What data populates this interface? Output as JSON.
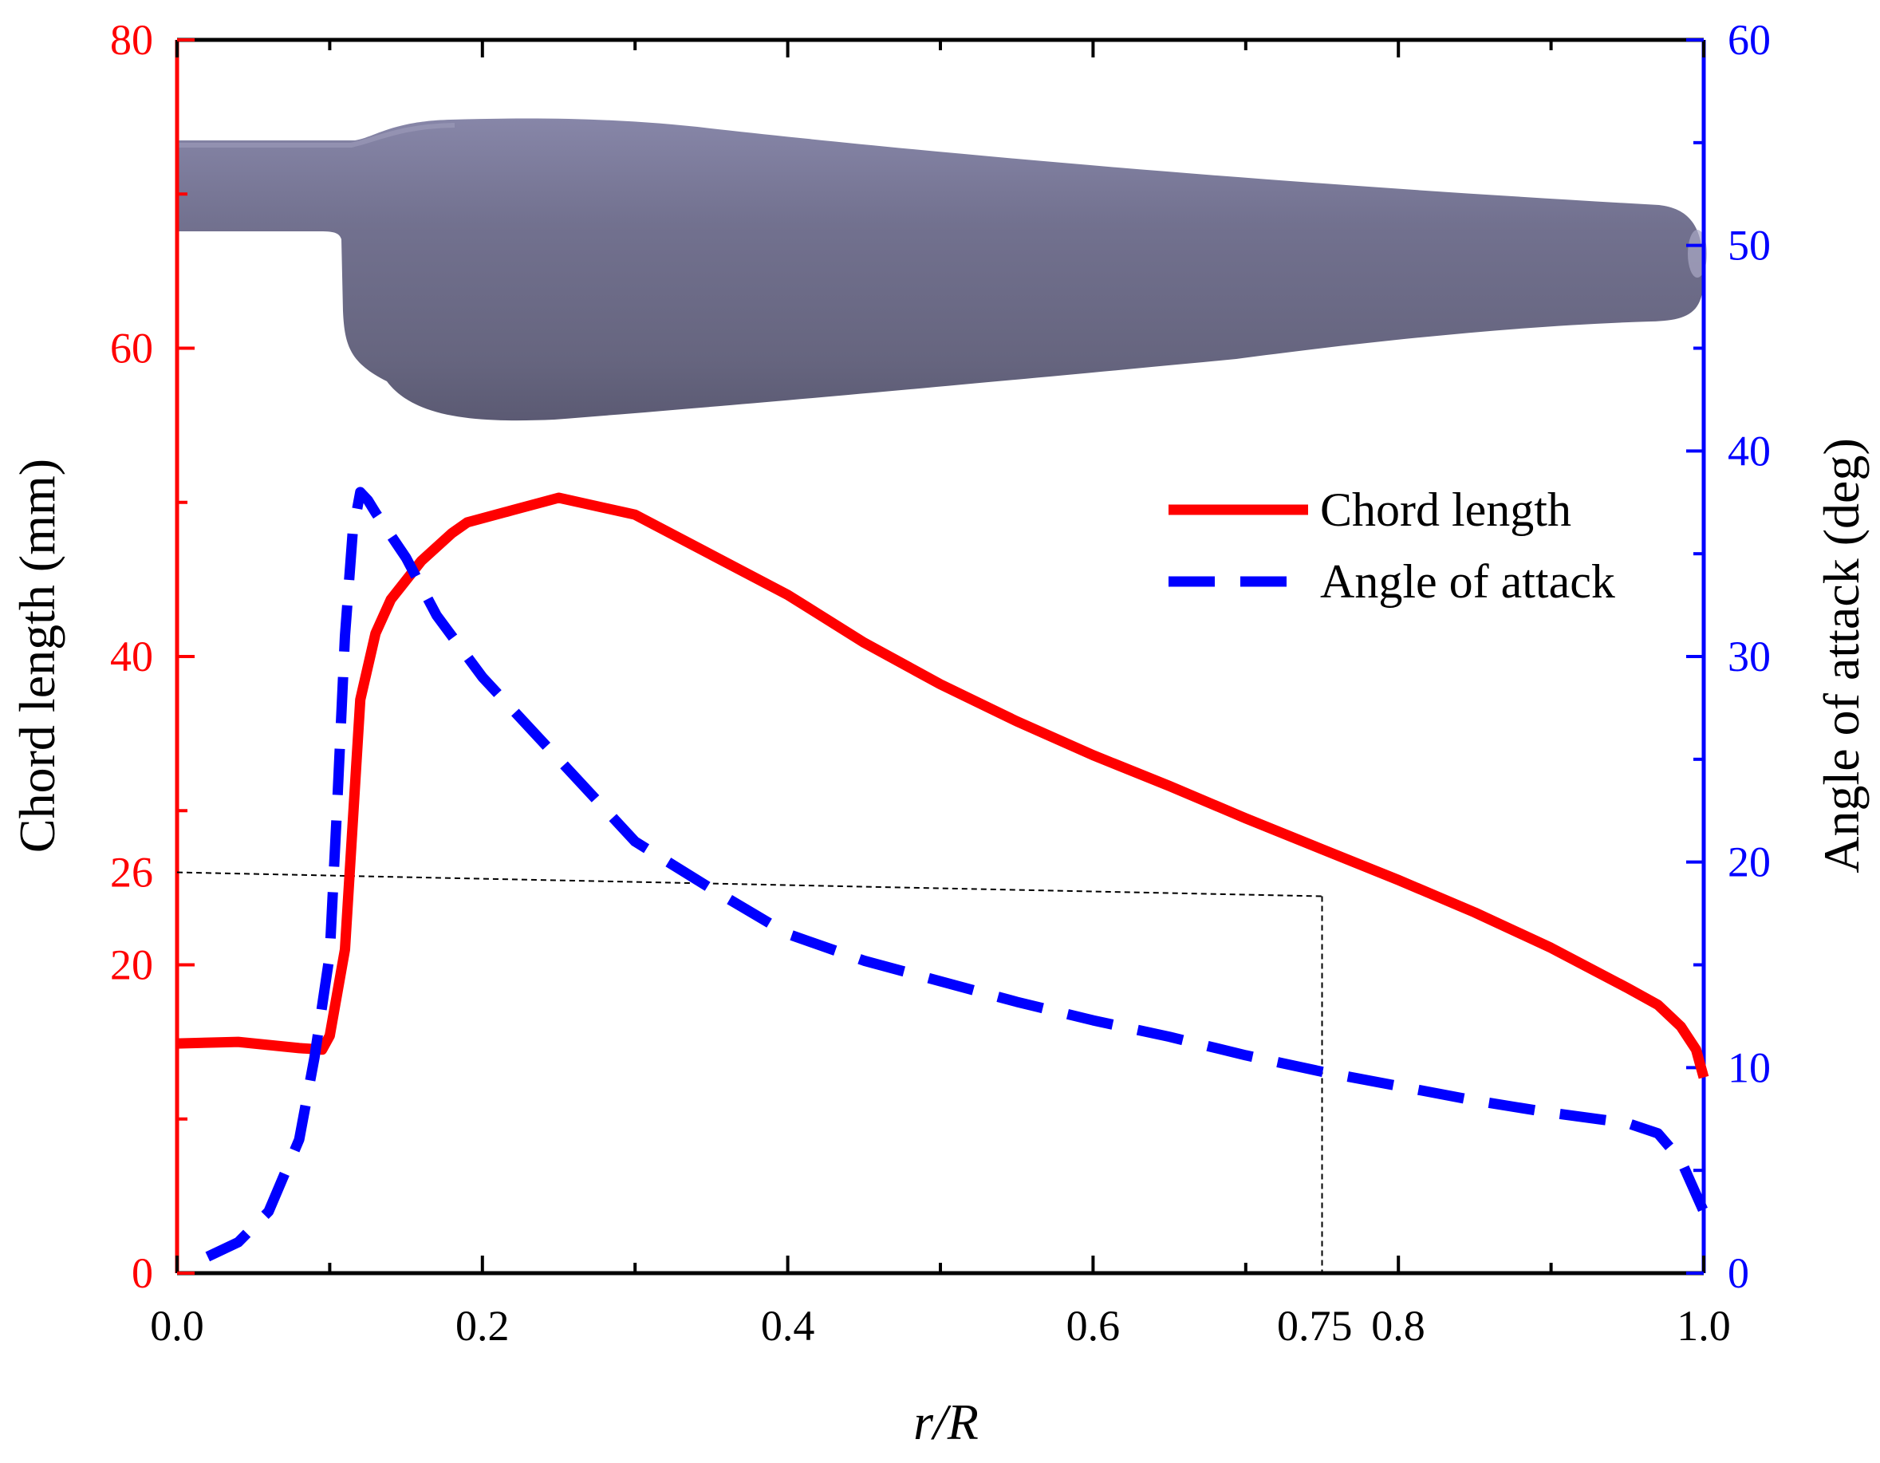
{
  "chart_data": {
    "type": "line",
    "xlabel": "r/R",
    "ylabel_left": "Chord length (mm)",
    "ylabel_right": "Angle of attack (deg)",
    "xlim": [
      0.0,
      1.0
    ],
    "ylim_left": [
      0,
      80
    ],
    "ylim_right": [
      0,
      60
    ],
    "x_ticks": [
      "0.0",
      "0.2",
      "0.4",
      "0.6",
      "0.75",
      "0.8",
      "1.0"
    ],
    "y_left_ticks": [
      "0",
      "20",
      "26",
      "40",
      "60",
      "80"
    ],
    "y_right_ticks": [
      "0",
      "10",
      "20",
      "30",
      "40",
      "50",
      "60"
    ],
    "colors": {
      "chord": "#ff0000",
      "angle": "#0000ff",
      "left_axis": "#ff0000",
      "right_axis": "#0000ff",
      "blade": "#6e6d92"
    },
    "series": [
      {
        "name": "Chord length",
        "axis": "left",
        "style": "solid",
        "x": [
          0.0,
          0.04,
          0.08,
          0.095,
          0.1,
          0.11,
          0.12,
          0.13,
          0.14,
          0.16,
          0.18,
          0.19,
          0.22,
          0.25,
          0.3,
          0.35,
          0.4,
          0.45,
          0.5,
          0.55,
          0.6,
          0.65,
          0.7,
          0.75,
          0.8,
          0.85,
          0.9,
          0.95,
          0.97,
          0.985,
          0.995,
          1.0
        ],
        "values": [
          14.9,
          15.0,
          14.6,
          14.5,
          15.4,
          21.0,
          37.2,
          41.5,
          43.7,
          46.2,
          48.0,
          48.7,
          49.5,
          50.3,
          49.2,
          46.6,
          44.0,
          40.9,
          38.2,
          35.8,
          33.6,
          31.6,
          29.5,
          27.5,
          25.5,
          23.4,
          21.1,
          18.5,
          17.4,
          16.0,
          14.5,
          12.7
        ]
      },
      {
        "name": "Angle of attack",
        "axis": "right",
        "style": "dashed",
        "x": [
          0.02,
          0.04,
          0.06,
          0.08,
          0.085,
          0.09,
          0.1,
          0.105,
          0.11,
          0.115,
          0.12,
          0.125,
          0.13,
          0.15,
          0.17,
          0.2,
          0.25,
          0.3,
          0.35,
          0.4,
          0.45,
          0.5,
          0.55,
          0.6,
          0.65,
          0.7,
          0.75,
          0.8,
          0.85,
          0.9,
          0.95,
          0.97,
          0.985,
          1.0
        ],
        "values": [
          0.8,
          1.5,
          3.0,
          6.5,
          8.5,
          10.5,
          15.5,
          23.0,
          31.0,
          36.0,
          38.0,
          37.6,
          37.0,
          34.8,
          32.0,
          29.0,
          25.0,
          21.0,
          18.7,
          16.5,
          15.2,
          14.2,
          13.2,
          12.3,
          11.5,
          10.6,
          9.8,
          9.1,
          8.4,
          7.8,
          7.3,
          6.8,
          5.5,
          3.0
        ]
      }
    ],
    "reference_lines": [
      {
        "type": "horizontal",
        "axis": "left",
        "y": 26,
        "note": "dotted guide slightly sloping to r/R = 0.75"
      },
      {
        "type": "vertical",
        "x": 0.75
      }
    ],
    "legend": {
      "position": "upper-right",
      "entries": [
        "Chord length",
        "Angle of attack"
      ]
    },
    "inset_image": "blade-planform-render"
  }
}
